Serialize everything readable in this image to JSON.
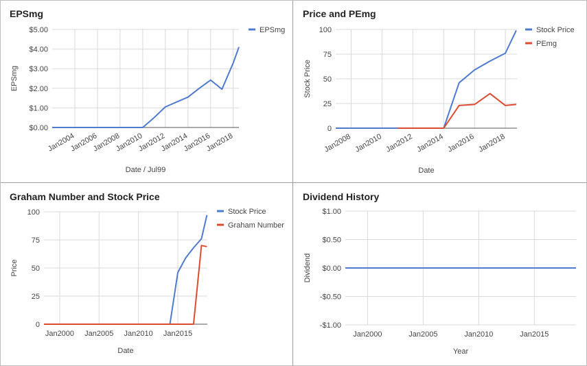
{
  "colors": {
    "blue": "#4e7ad0",
    "red": "#dc4b2f",
    "grid": "#d9d9d9",
    "axis": "#555555",
    "text": "#444444"
  },
  "chart_data": [
    {
      "id": "eps",
      "type": "line",
      "title": "EPSmg",
      "xlabel": "Date / Jul99",
      "ylabel": "EPSmg",
      "ylim": [
        0,
        5
      ],
      "y_ticks": [
        "$0.00",
        "$1.00",
        "$2.00",
        "$3.00",
        "$4.00",
        "$5.00"
      ],
      "x_ticks": [
        "Jan2004",
        "Jan2006",
        "Jan2008",
        "Jan2010",
        "Jan2012",
        "Jan2014",
        "Jan2016",
        "Jan2018"
      ],
      "x_tick_years": [
        2004,
        2006,
        2008,
        2010,
        2012,
        2014,
        2016,
        2018
      ],
      "xlim": [
        2002.0,
        2018.5
      ],
      "x_tick_rotate": true,
      "legend": "top-right",
      "series": [
        {
          "name": "EPSmg",
          "color": "blue",
          "x": [
            2002.0,
            2008.0,
            2010.0,
            2011.0,
            2012.0,
            2013.0,
            2014.0,
            2015.0,
            2016.0,
            2017.0,
            2018.0,
            2018.5
          ],
          "y": [
            0,
            0,
            0,
            0.5,
            1.05,
            1.3,
            1.55,
            2.0,
            2.42,
            1.95,
            3.3,
            4.1
          ]
        }
      ]
    },
    {
      "id": "price_pe",
      "type": "line",
      "title": "Price and PEmg",
      "xlabel": "Date",
      "ylabel": "Stock Price",
      "ylim": [
        0,
        100
      ],
      "y_ticks": [
        "0",
        "25",
        "50",
        "75",
        "100"
      ],
      "x_ticks": [
        "Jan2008",
        "Jan2010",
        "Jan2012",
        "Jan2014",
        "Jan2016",
        "Jan2018"
      ],
      "x_tick_years": [
        2008,
        2010,
        2012,
        2014,
        2016,
        2018
      ],
      "xlim": [
        2007.0,
        2018.75
      ],
      "x_tick_rotate": true,
      "legend": "top-right",
      "series": [
        {
          "name": "Stock Price",
          "color": "blue",
          "x": [
            2007.0,
            2014.0,
            2015.0,
            2016.0,
            2017.0,
            2018.0,
            2018.7
          ],
          "y": [
            0,
            0,
            46,
            59,
            68,
            76,
            99
          ]
        },
        {
          "name": "PEmg",
          "color": "red",
          "x": [
            2011.0,
            2014.0,
            2015.0,
            2016.0,
            2017.0,
            2018.0,
            2018.7
          ],
          "y": [
            0,
            0,
            23,
            24,
            35,
            23,
            24
          ]
        }
      ]
    },
    {
      "id": "graham",
      "type": "line",
      "title": "Graham Number and Stock Price",
      "xlabel": "Date",
      "ylabel": "Price",
      "ylim": [
        0,
        100
      ],
      "y_ticks": [
        "0",
        "25",
        "50",
        "75",
        "100"
      ],
      "x_ticks": [
        "Jan2000",
        "Jan2005",
        "Jan2010",
        "Jan2015"
      ],
      "x_tick_years": [
        2000,
        2005,
        2010,
        2015
      ],
      "xlim": [
        1998.0,
        2018.75
      ],
      "x_tick_rotate": false,
      "legend": "top-right",
      "series": [
        {
          "name": "Stock Price",
          "color": "blue",
          "x": [
            1998.0,
            2014.0,
            2015.0,
            2016.0,
            2017.0,
            2018.0,
            2018.7
          ],
          "y": [
            0,
            0,
            46,
            59,
            68,
            76,
            97
          ]
        },
        {
          "name": "Graham Number",
          "color": "red",
          "x": [
            1998.0,
            2017.0,
            2018.0,
            2018.7
          ],
          "y": [
            0,
            0,
            70,
            69
          ]
        }
      ]
    },
    {
      "id": "dividend",
      "type": "line",
      "title": "Dividend History",
      "xlabel": "Year",
      "ylabel": "Dividend",
      "ylim": [
        -1,
        1
      ],
      "y_ticks": [
        "-$1.00",
        "-$0.50",
        "$0.00",
        "$0.50",
        "$1.00"
      ],
      "x_ticks": [
        "Jan2000",
        "Jan2005",
        "Jan2010",
        "Jan2015"
      ],
      "x_tick_years": [
        2000,
        2005,
        2010,
        2015
      ],
      "xlim": [
        1998.0,
        2018.75
      ],
      "x_tick_rotate": false,
      "legend": "none",
      "series": [
        {
          "name": "",
          "color": "blue",
          "x": [
            1998.0,
            2018.75
          ],
          "y": [
            0,
            0
          ]
        }
      ]
    }
  ]
}
